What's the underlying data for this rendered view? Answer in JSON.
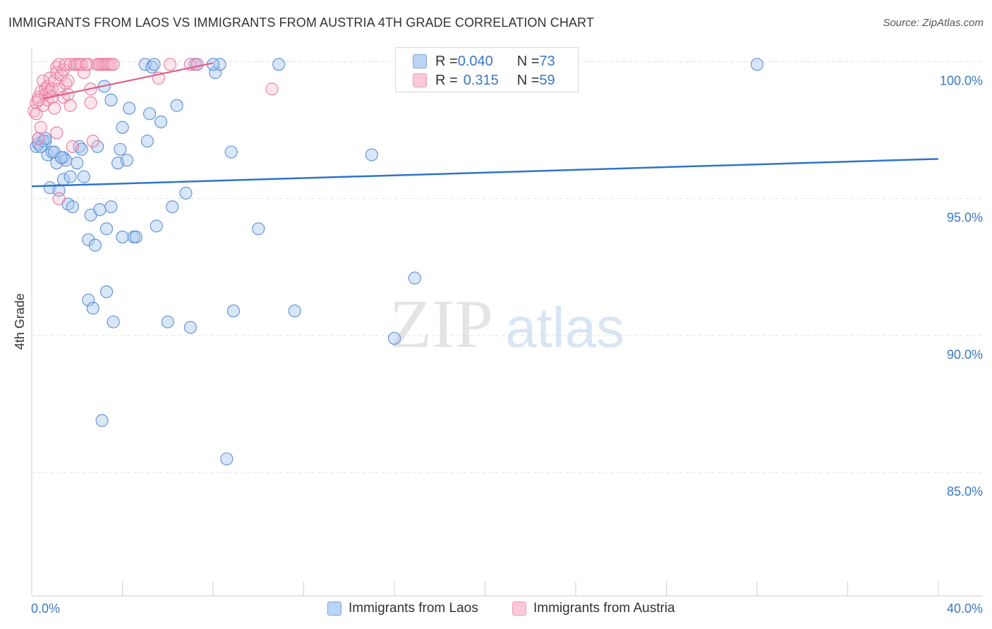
{
  "title": "IMMIGRANTS FROM LAOS VS IMMIGRANTS FROM AUSTRIA 4TH GRADE CORRELATION CHART",
  "source": "Source: ZipAtlas.com",
  "watermark": {
    "zip": "ZIP",
    "atlas": "atlas"
  },
  "colors": {
    "laos_fill": "#a9c8f0",
    "laos_stroke": "#5b8fd6",
    "laos_line": "#2f74c8",
    "austria_fill": "#f7b8cc",
    "austria_stroke": "#e87a9f",
    "austria_line": "#e0608a",
    "grid": "#e3e3e3",
    "axis_text": "#3a78c3"
  },
  "stats": [
    {
      "r_label": "R = ",
      "r_value": "0.040",
      "n_label": "N = ",
      "n_value": "73"
    },
    {
      "r_label": "R = ",
      "r_value": "0.315",
      "n_label": "N = ",
      "n_value": "59"
    }
  ],
  "chart_data": {
    "type": "scatter",
    "title": "IMMIGRANTS FROM LAOS VS IMMIGRANTS FROM AUSTRIA 4TH GRADE CORRELATION CHART",
    "xlabel": "",
    "ylabel": "4th Grade",
    "xlim": [
      0,
      40
    ],
    "ylim": [
      80.5,
      100.5
    ],
    "x_tick_labels": [
      "0.0%",
      "40.0%"
    ],
    "y_ticks": [
      85,
      90,
      95,
      100
    ],
    "y_tick_labels": [
      "85.0%",
      "90.0%",
      "95.0%",
      "100.0%"
    ],
    "grid": true,
    "legend_position": "bottom-center",
    "series": [
      {
        "name": "Immigrants from Laos",
        "color": "#a9c8f0",
        "trend": {
          "x": [
            0,
            40
          ],
          "y": [
            95.45,
            96.45
          ]
        },
        "points": [
          [
            0.2,
            96.9
          ],
          [
            0.3,
            97.0
          ],
          [
            0.3,
            97.2
          ],
          [
            0.5,
            97.1
          ],
          [
            0.6,
            97.1
          ],
          [
            0.7,
            96.6
          ],
          [
            0.8,
            95.4
          ],
          [
            0.9,
            96.7
          ],
          [
            1.0,
            96.7
          ],
          [
            1.1,
            96.3
          ],
          [
            1.2,
            95.3
          ],
          [
            1.4,
            96.5
          ],
          [
            1.4,
            95.7
          ],
          [
            1.5,
            96.4
          ],
          [
            1.6,
            94.8
          ],
          [
            1.7,
            95.8
          ],
          [
            1.8,
            94.7
          ],
          [
            2.0,
            96.3
          ],
          [
            2.1,
            96.9
          ],
          [
            2.2,
            96.8
          ],
          [
            2.3,
            95.8
          ],
          [
            2.5,
            93.5
          ],
          [
            2.5,
            91.3
          ],
          [
            2.6,
            94.4
          ],
          [
            2.7,
            91.0
          ],
          [
            2.8,
            93.3
          ],
          [
            3.0,
            94.6
          ],
          [
            3.1,
            86.9
          ],
          [
            3.2,
            99.1
          ],
          [
            3.3,
            93.9
          ],
          [
            3.3,
            91.6
          ],
          [
            3.5,
            94.7
          ],
          [
            3.5,
            98.6
          ],
          [
            3.6,
            90.5
          ],
          [
            3.8,
            96.3
          ],
          [
            3.9,
            96.8
          ],
          [
            4.0,
            97.6
          ],
          [
            4.0,
            93.6
          ],
          [
            4.2,
            96.4
          ],
          [
            4.3,
            98.3
          ],
          [
            4.5,
            93.6
          ],
          [
            4.6,
            93.6
          ],
          [
            5.0,
            99.9
          ],
          [
            5.1,
            97.1
          ],
          [
            5.2,
            98.1
          ],
          [
            5.3,
            99.8
          ],
          [
            5.4,
            99.9
          ],
          [
            5.5,
            94.0
          ],
          [
            5.7,
            97.8
          ],
          [
            6.0,
            90.5
          ],
          [
            6.2,
            94.7
          ],
          [
            6.4,
            98.4
          ],
          [
            6.8,
            95.2
          ],
          [
            7.0,
            90.3
          ],
          [
            7.2,
            99.9
          ],
          [
            7.3,
            99.9
          ],
          [
            8.1,
            99.6
          ],
          [
            8.3,
            99.9
          ],
          [
            8.6,
            85.5
          ],
          [
            8.8,
            96.7
          ],
          [
            8.9,
            90.9
          ],
          [
            10.0,
            93.9
          ],
          [
            10.9,
            99.9
          ],
          [
            11.6,
            90.9
          ],
          [
            15.0,
            96.6
          ],
          [
            16.0,
            89.9
          ],
          [
            16.9,
            92.1
          ],
          [
            32.0,
            99.9
          ],
          [
            0.4,
            96.9
          ],
          [
            1.3,
            96.5
          ],
          [
            2.9,
            96.9
          ],
          [
            0.6,
            97.2
          ],
          [
            8.0,
            99.9
          ]
        ]
      },
      {
        "name": "Immigrants from Austria",
        "color": "#f7b8cc",
        "trend": {
          "x": [
            0.5,
            8.0
          ],
          "y": [
            98.65,
            99.95
          ]
        },
        "points": [
          [
            0.1,
            98.2
          ],
          [
            0.2,
            98.5
          ],
          [
            0.2,
            98.1
          ],
          [
            0.3,
            98.7
          ],
          [
            0.3,
            97.2
          ],
          [
            0.4,
            98.9
          ],
          [
            0.4,
            97.6
          ],
          [
            0.5,
            99.3
          ],
          [
            0.5,
            98.4
          ],
          [
            0.6,
            99.0
          ],
          [
            0.6,
            98.8
          ],
          [
            0.7,
            99.1
          ],
          [
            0.7,
            98.6
          ],
          [
            0.8,
            99.4
          ],
          [
            0.8,
            98.9
          ],
          [
            0.9,
            98.7
          ],
          [
            0.9,
            99.0
          ],
          [
            1.0,
            99.3
          ],
          [
            1.0,
            98.3
          ],
          [
            1.1,
            99.8
          ],
          [
            1.1,
            99.6
          ],
          [
            1.1,
            97.4
          ],
          [
            1.2,
            99.9
          ],
          [
            1.2,
            99.0
          ],
          [
            1.2,
            95.0
          ],
          [
            1.3,
            99.5
          ],
          [
            1.4,
            99.7
          ],
          [
            1.4,
            98.7
          ],
          [
            1.5,
            99.9
          ],
          [
            1.5,
            99.2
          ],
          [
            1.6,
            99.3
          ],
          [
            1.6,
            98.8
          ],
          [
            1.7,
            99.9
          ],
          [
            1.7,
            98.4
          ],
          [
            1.8,
            96.9
          ],
          [
            1.9,
            99.9
          ],
          [
            2.0,
            99.9
          ],
          [
            2.1,
            99.9
          ],
          [
            2.2,
            99.9
          ],
          [
            2.3,
            99.6
          ],
          [
            2.5,
            99.9
          ],
          [
            2.6,
            98.5
          ],
          [
            2.6,
            99.0
          ],
          [
            2.7,
            97.1
          ],
          [
            2.9,
            99.9
          ],
          [
            3.0,
            99.9
          ],
          [
            3.1,
            99.9
          ],
          [
            3.2,
            99.9
          ],
          [
            3.3,
            99.9
          ],
          [
            3.4,
            99.9
          ],
          [
            3.5,
            99.9
          ],
          [
            3.6,
            99.9
          ],
          [
            5.6,
            99.4
          ],
          [
            6.1,
            99.9
          ],
          [
            7.0,
            99.9
          ],
          [
            7.3,
            99.9
          ],
          [
            10.6,
            99.0
          ],
          [
            2.4,
            99.9
          ],
          [
            0.3,
            98.6
          ]
        ]
      }
    ]
  }
}
